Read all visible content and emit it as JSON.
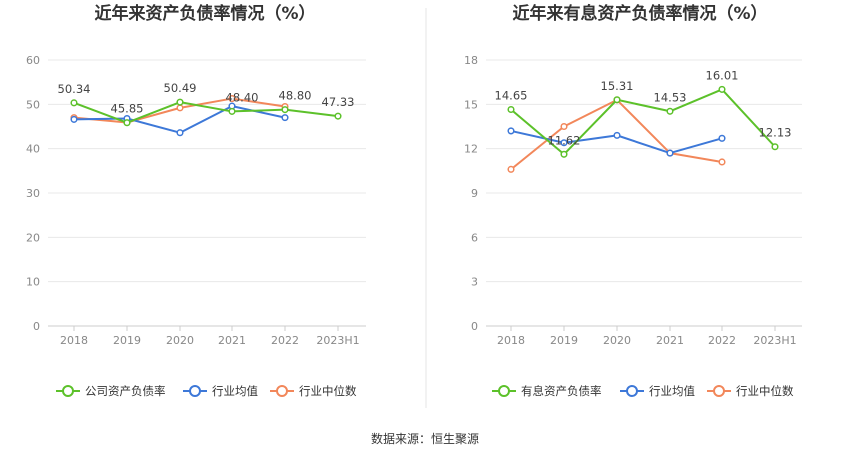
{
  "source_text": "数据来源：恒生聚源",
  "chart_data": [
    {
      "type": "line",
      "title": "近年来资产负债率情况（%）",
      "categories": [
        "2018",
        "2019",
        "2020",
        "2021",
        "2022",
        "2023H1"
      ],
      "ylim": [
        0,
        60
      ],
      "yticks": [
        0,
        10,
        20,
        30,
        40,
        50,
        60
      ],
      "grid": true,
      "legend_position": "bottom",
      "series": [
        {
          "name": "公司资产负债率",
          "color": "#5cc12a",
          "values": [
            50.34,
            45.85,
            50.49,
            48.4,
            48.8,
            47.33
          ],
          "labels": [
            "50.34",
            "45.85",
            "50.49",
            "48.40",
            "48.80",
            "47.33"
          ]
        },
        {
          "name": "行业均值",
          "color": "#3d78d8",
          "values": [
            46.6,
            46.8,
            43.6,
            49.6,
            47.0,
            null
          ]
        },
        {
          "name": "行业中位数",
          "color": "#f2875a",
          "values": [
            47.0,
            45.9,
            49.2,
            51.3,
            49.5,
            null
          ]
        }
      ]
    },
    {
      "type": "line",
      "title": "近年来有息资产负债率情况（%）",
      "categories": [
        "2018",
        "2019",
        "2020",
        "2021",
        "2022",
        "2023H1"
      ],
      "ylim": [
        0,
        18
      ],
      "yticks": [
        0,
        3,
        6,
        9,
        12,
        15,
        18
      ],
      "grid": true,
      "legend_position": "bottom",
      "series": [
        {
          "name": "有息资产负债率",
          "color": "#5cc12a",
          "values": [
            14.65,
            11.62,
            15.31,
            14.53,
            16.01,
            12.13
          ],
          "labels": [
            "14.65",
            "11.62",
            "15.31",
            "14.53",
            "16.01",
            "12.13"
          ]
        },
        {
          "name": "行业均值",
          "color": "#3d78d8",
          "values": [
            13.2,
            12.4,
            12.9,
            11.7,
            12.7,
            null
          ]
        },
        {
          "name": "行业中位数",
          "color": "#f2875a",
          "values": [
            10.6,
            13.5,
            15.3,
            11.7,
            11.1,
            null
          ]
        }
      ]
    }
  ]
}
